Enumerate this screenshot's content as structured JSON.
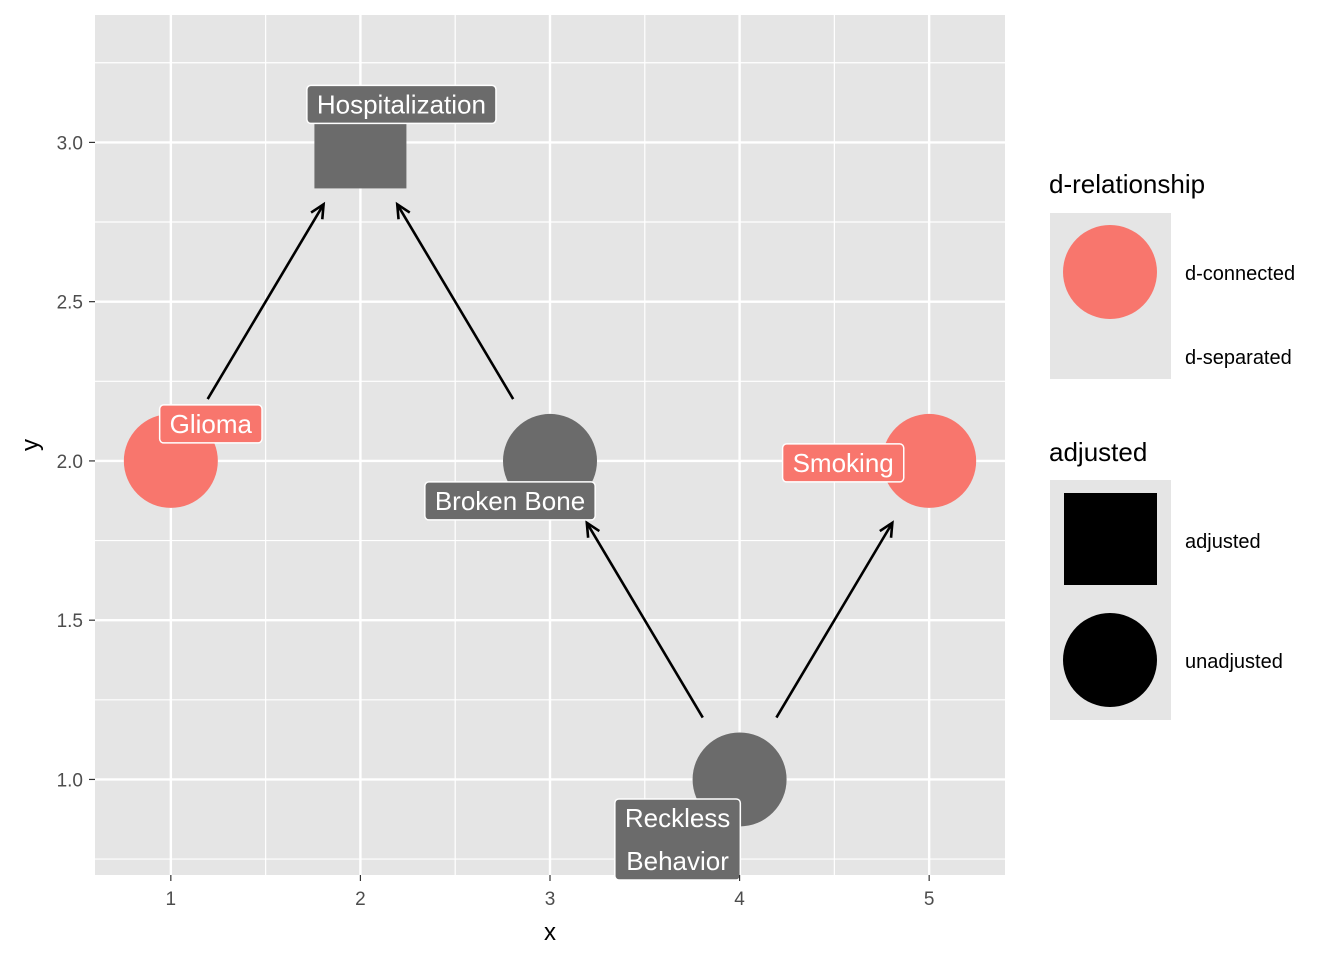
{
  "plot": {
    "panel_bg": "#e5e5e5",
    "grid_color": "#ffffff",
    "xlabel": "x",
    "ylabel": "y",
    "x_ticks": [
      "1",
      "2",
      "3",
      "4",
      "5"
    ],
    "y_ticks": [
      "1.0",
      "1.5",
      "2.0",
      "2.5",
      "3.0"
    ],
    "xlim": [
      0.6,
      5.4
    ],
    "ylim": [
      0.7,
      3.4
    ]
  },
  "colors": {
    "d_connected": "#f8766d",
    "d_separated": "#6b6b6b",
    "edge": "#000000"
  },
  "nodes": [
    {
      "id": "hospitalization",
      "label": "Hospitalization",
      "x": 2,
      "y": 3,
      "relationship": "d-separated",
      "adjusted": "adjusted"
    },
    {
      "id": "glioma",
      "label": "Glioma",
      "x": 1,
      "y": 2,
      "relationship": "d-connected",
      "adjusted": "unadjusted"
    },
    {
      "id": "broken-bone",
      "label": "Broken Bone",
      "x": 3,
      "y": 2,
      "relationship": "d-separated",
      "adjusted": "unadjusted"
    },
    {
      "id": "smoking",
      "label": "Smoking",
      "x": 5,
      "y": 2,
      "relationship": "d-connected",
      "adjusted": "unadjusted"
    },
    {
      "id": "reckless-behavior",
      "label": "Reckless\nBehavior",
      "x": 4,
      "y": 1,
      "relationship": "d-separated",
      "adjusted": "unadjusted"
    }
  ],
  "edges": [
    {
      "from": "glioma",
      "to": "hospitalization"
    },
    {
      "from": "broken-bone",
      "to": "hospitalization"
    },
    {
      "from": "reckless-behavior",
      "to": "broken-bone"
    },
    {
      "from": "reckless-behavior",
      "to": "smoking"
    }
  ],
  "legend": {
    "relationship_title": "d-relationship",
    "relationship_items": [
      "d-connected",
      "d-separated"
    ],
    "adjusted_title": "adjusted",
    "adjusted_items": [
      "adjusted",
      "unadjusted"
    ]
  }
}
